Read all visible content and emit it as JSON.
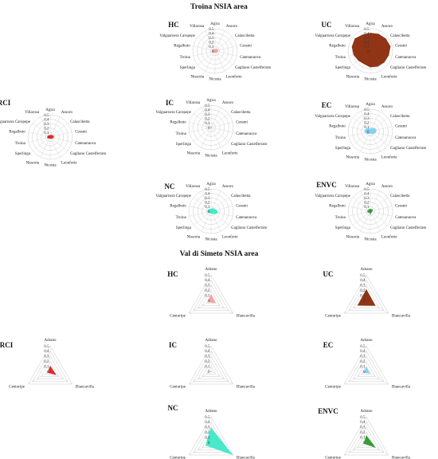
{
  "titles": {
    "troina": "Troina  NSIA area",
    "simeto": "Val di Simeto NSIA area"
  },
  "chart_data": [
    {
      "type": "radar",
      "group": "troina",
      "title": "HC",
      "categories": [
        "Agira",
        "Assoro",
        "Calascibetta",
        "Cerami",
        "Catenanuova",
        "Gagliano Castelferrato",
        "Leonforte",
        "Nicosia",
        "Nissoria",
        "Sperlinga",
        "Troina",
        "Regalbuto",
        "Valguarnera Caropepe",
        "Villarosa"
      ],
      "tick_labels": [
        "0",
        "0.1",
        "0.2",
        "0.3",
        "0.4",
        "0.5"
      ],
      "rlim": [
        0,
        0.5
      ],
      "values": [
        0.03,
        0.05,
        0.06,
        0.07,
        0.06,
        0.05,
        0.04,
        0.03,
        0.04,
        0.05,
        0.06,
        0.06,
        0.05,
        0.04
      ],
      "color": "#f4a0a0"
    },
    {
      "type": "radar",
      "group": "troina",
      "title": "UC",
      "categories": [
        "Agira",
        "Assoro",
        "Calascibetta",
        "Cerami",
        "Catenanuova",
        "Gagliano Castelferrato",
        "Leonforte",
        "Nicosia",
        "Nissoria",
        "Sperlinga",
        "Troina",
        "Regalbuto",
        "Valguarnera Caropepe",
        "Villarosa"
      ],
      "tick_labels": [
        "0",
        "0.1",
        "0.2",
        "0.3",
        "0.4",
        "0.5"
      ],
      "rlim": [
        0,
        0.5
      ],
      "values": [
        0.4,
        0.42,
        0.44,
        0.46,
        0.42,
        0.4,
        0.38,
        0.36,
        0.32,
        0.34,
        0.38,
        0.42,
        0.44,
        0.4
      ],
      "color": "#8b2a0a"
    },
    {
      "type": "radar",
      "group": "troina",
      "title": "RCI",
      "categories": [
        "Agira",
        "Assoro",
        "Calascibetta",
        "Cerami",
        "Catenanuova",
        "Gagliano Castelferrato",
        "Leonforte",
        "Nicosia",
        "Nissoria",
        "Sperlinga",
        "Troina",
        "Regalbuto",
        "Valguarnera Caropepe",
        "Villarosa"
      ],
      "tick_labels": [
        "0",
        "0.1",
        "0.2",
        "0.3",
        "0.4",
        "0.5"
      ],
      "rlim": [
        0,
        0.5
      ],
      "values": [
        0.04,
        0.05,
        0.06,
        0.08,
        0.07,
        0.05,
        0.04,
        0.03,
        0.03,
        0.04,
        0.05,
        0.05,
        0.05,
        0.04
      ],
      "color": "#e02020"
    },
    {
      "type": "radar",
      "group": "troina",
      "title": "IC",
      "categories": [
        "Agira",
        "Assoro",
        "Calascibetta",
        "Cerami",
        "Catenanuova",
        "Gagliano Castelferrato",
        "Leonforte",
        "Nicosia",
        "Nissoria",
        "Sperlinga",
        "Troina",
        "Regalbuto",
        "Valguarnera Caropepe",
        "Villarosa"
      ],
      "tick_labels": [
        "0",
        "0.1",
        "0.2",
        "0.3",
        "0.4",
        "0.5"
      ],
      "rlim": [
        0,
        0.5
      ],
      "values": [
        0.005,
        0.005,
        0.005,
        0.005,
        0.005,
        0.005,
        0.005,
        0.005,
        0.005,
        0.005,
        0.005,
        0.005,
        0.005,
        0.005
      ],
      "color": "#b0b0b0"
    },
    {
      "type": "radar",
      "group": "troina",
      "title": "EC",
      "categories": [
        "Agira",
        "Assoro",
        "Calascibetta",
        "Cerami",
        "Catenanuova",
        "Gagliano Castelferrato",
        "Leonforte",
        "Nicosia",
        "Nissoria",
        "Sperlinga",
        "Troina",
        "Regalbuto",
        "Valguarnera Caropepe",
        "Villarosa"
      ],
      "tick_labels": [
        "0",
        "0.1",
        "0.2",
        "0.3",
        "0.4",
        "0.5"
      ],
      "rlim": [
        0,
        0.5
      ],
      "values": [
        0.06,
        0.08,
        0.12,
        0.14,
        0.12,
        0.08,
        0.05,
        0.04,
        0.05,
        0.08,
        0.12,
        0.13,
        0.1,
        0.07
      ],
      "color": "#80d0f0"
    },
    {
      "type": "radar",
      "group": "troina",
      "title": "NC",
      "categories": [
        "Agira",
        "Assoro",
        "Calascibetta",
        "Cerami",
        "Catenanuova",
        "Gagliano Castelferrato",
        "Leonforte",
        "Nicosia",
        "Nissoria",
        "Sperlinga",
        "Troina",
        "Regalbuto",
        "Valguarnera Caropepe",
        "Villarosa"
      ],
      "tick_labels": [
        "0",
        "0.1",
        "0.2",
        "0.3",
        "0.4",
        "0.5"
      ],
      "rlim": [
        0,
        0.5
      ],
      "values": [
        0.05,
        0.07,
        0.08,
        0.12,
        0.16,
        0.1,
        0.06,
        0.05,
        0.04,
        0.06,
        0.08,
        0.07,
        0.06,
        0.05
      ],
      "color": "#40e8c8"
    },
    {
      "type": "radar",
      "group": "troina",
      "title": "ENVC",
      "categories": [
        "Agira",
        "Assoro",
        "Calascibetta",
        "Cerami",
        "Catenanuova",
        "Gagliano Castelferrato",
        "Leonforte",
        "Nicosia",
        "Nissoria",
        "Sperlinga",
        "Troina",
        "Regalbuto",
        "Valguarnera Caropepe",
        "Villarosa"
      ],
      "tick_labels": [
        "0",
        "0.1",
        "0.2",
        "0.3",
        "0.4",
        "0.5"
      ],
      "rlim": [
        0,
        0.5
      ],
      "values": [
        0.05,
        0.04,
        0.06,
        0.05,
        0.03,
        0.04,
        0.03,
        0.08,
        0.03,
        0.04,
        0.05,
        0.04,
        0.05,
        0.04
      ],
      "color": "#2a9a2a"
    },
    {
      "type": "radar",
      "group": "simeto",
      "title": "HC",
      "categories": [
        "Adrano",
        "Biancavilla",
        "Centuripe"
      ],
      "tick_labels": [
        "0",
        "0.1",
        "0.2",
        "0.3",
        "0.4",
        "0.5"
      ],
      "rlim": [
        0,
        0.5
      ],
      "values": [
        0.12,
        0.1,
        0.06
      ],
      "color": "#f4a0a0"
    },
    {
      "type": "radar",
      "group": "simeto",
      "title": "UC",
      "categories": [
        "Adrano",
        "Biancavilla",
        "Centuripe"
      ],
      "tick_labels": [
        "0",
        "0.1",
        "0.2",
        "0.3",
        "0.4",
        "0.5"
      ],
      "rlim": [
        0,
        0.5
      ],
      "values": [
        0.21,
        0.2,
        0.19
      ],
      "color": "#8b2a0a"
    },
    {
      "type": "radar",
      "group": "simeto",
      "title": "RCI",
      "categories": [
        "Adrano",
        "Biancavilla",
        "Centuripe"
      ],
      "tick_labels": [
        "0",
        "0.1",
        "0.2",
        "0.3",
        "0.4",
        "0.5"
      ],
      "rlim": [
        0,
        0.5
      ],
      "values": [
        0.1,
        0.13,
        0.05
      ],
      "color": "#e02020"
    },
    {
      "type": "radar",
      "group": "simeto",
      "title": "IC",
      "categories": [
        "Adrano",
        "Biancavilla",
        "Centuripe"
      ],
      "tick_labels": [
        "0",
        "0.1",
        "0.2",
        "0.3",
        "0.4",
        "0.5"
      ],
      "rlim": [
        0,
        0.5
      ],
      "values": [
        0.006,
        0.01,
        0.004
      ],
      "color": "#b0b0b0"
    },
    {
      "type": "radar",
      "group": "simeto",
      "title": "EC",
      "categories": [
        "Adrano",
        "Biancavilla",
        "Centuripe"
      ],
      "tick_labels": [
        "0",
        "0.1",
        "0.2",
        "0.3",
        "0.4",
        "0.5"
      ],
      "rlim": [
        0,
        0.5
      ],
      "values": [
        0.08,
        0.07,
        0.05
      ],
      "color": "#80d0f0"
    },
    {
      "type": "radar",
      "group": "simeto",
      "title": "NC",
      "categories": [
        "Adrano",
        "Biancavilla",
        "Centuripe"
      ],
      "tick_labels": [
        "0",
        "0.1",
        "0.2",
        "0.3",
        "0.4",
        "0.5"
      ],
      "rlim": [
        0,
        0.5
      ],
      "values": [
        0.28,
        0.48,
        0.12
      ],
      "color": "#40e8c8"
    },
    {
      "type": "radar",
      "group": "simeto",
      "title": "ENVC",
      "categories": [
        "Adrano",
        "Biancavilla",
        "Centuripe"
      ],
      "tick_labels": [
        "0",
        "0.1",
        "0.2",
        "0.3",
        "0.4",
        "0.5"
      ],
      "rlim": [
        0,
        0.5
      ],
      "values": [
        0.13,
        0.2,
        0.05
      ],
      "color": "#2a9a2a"
    }
  ]
}
